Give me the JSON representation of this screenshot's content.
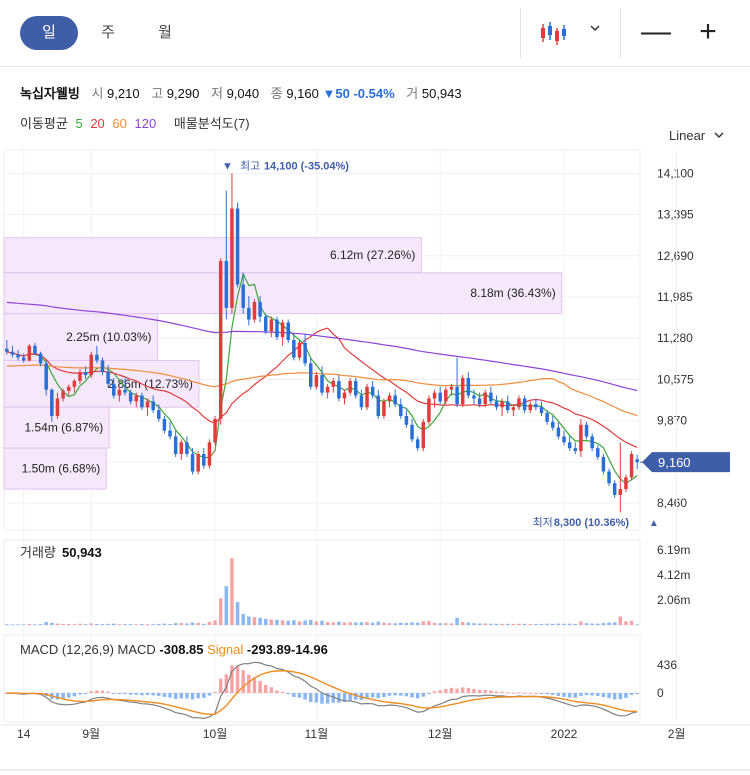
{
  "periods": [
    "일",
    "주",
    "월"
  ],
  "active_period": 0,
  "icons": {
    "chart_type": "candlestick-icon",
    "dropdown": "chevron-down-icon",
    "zoom_out": "minus-icon",
    "zoom_in": "plus-icon"
  },
  "zoom": {
    "out": "—",
    "in": "+"
  },
  "quote": {
    "name": "녹십자웰빙",
    "open_label": "시",
    "open": "9,210",
    "high_label": "고",
    "high": "9,290",
    "low_label": "저",
    "low": "9,040",
    "close_label": "종",
    "close": "9,160",
    "change": "▼50 -0.54%",
    "volume_label": "거",
    "volume": "50,943"
  },
  "ma_legend": {
    "label": "이동평균",
    "periods": [
      {
        "value": "5",
        "color": "#3aa73a"
      },
      {
        "value": "20",
        "color": "#e03c3c"
      },
      {
        "value": "60",
        "color": "#f08c3c"
      },
      {
        "value": "120",
        "color": "#8e44d6"
      }
    ],
    "vp_label": "매물분석도(7)"
  },
  "scale_type": "Linear",
  "colors": {
    "up": "#e03c3c",
    "down": "#2a6fd6",
    "volume_up": "#f4a4a4",
    "volume_down": "#8ab7ef",
    "vp_fill": "#f6e8fb",
    "vp_border": "#e3c4ef",
    "macd": "#808080",
    "signal": "#f08c1e",
    "price_tag": "#3f5ea8"
  },
  "chart_data": {
    "type": "candlestick",
    "price_axis": {
      "ticks": [
        "14,100",
        "13,395",
        "12,690",
        "11,985",
        "11,280",
        "10,575",
        "9,870",
        "9,160",
        "8,460"
      ],
      "ylim": [
        8000,
        14500
      ]
    },
    "x_axis": {
      "labels": [
        {
          "label": "14",
          "index": 3
        },
        {
          "label": "9월",
          "index": 15
        },
        {
          "label": "10월",
          "index": 37
        },
        {
          "label": "11월",
          "index": 55
        },
        {
          "label": "12월",
          "index": 77
        },
        {
          "label": "2022",
          "index": 99
        },
        {
          "label": "2월",
          "index": 119
        }
      ]
    },
    "candles": [
      [
        11100,
        11250,
        11000,
        11050
      ],
      [
        11050,
        11150,
        10950,
        11000
      ],
      [
        11000,
        11080,
        10900,
        10950
      ],
      [
        10950,
        11020,
        10860,
        10900
      ],
      [
        10900,
        11180,
        10880,
        11150
      ],
      [
        11150,
        11200,
        10990,
        11020
      ],
      [
        11020,
        11050,
        10800,
        10850
      ],
      [
        10850,
        10900,
        10300,
        10400
      ],
      [
        10400,
        10420,
        9850,
        9950
      ],
      [
        9950,
        10350,
        9900,
        10250
      ],
      [
        10250,
        10420,
        10200,
        10380
      ],
      [
        10380,
        10490,
        10300,
        10450
      ],
      [
        10450,
        10580,
        10350,
        10550
      ],
      [
        10550,
        10750,
        10500,
        10700
      ],
      [
        10700,
        10800,
        10580,
        10650
      ],
      [
        10650,
        11050,
        10600,
        11000
      ],
      [
        11000,
        11150,
        10850,
        10900
      ],
      [
        10900,
        10950,
        10650,
        10700
      ],
      [
        10700,
        10820,
        10450,
        10500
      ],
      [
        10500,
        10600,
        10250,
        10300
      ],
      [
        10300,
        10450,
        10200,
        10400
      ],
      [
        10400,
        10600,
        10300,
        10350
      ],
      [
        10350,
        10400,
        10150,
        10200
      ],
      [
        10200,
        10350,
        10100,
        10300
      ],
      [
        10300,
        10350,
        10050,
        10100
      ],
      [
        10100,
        10250,
        9950,
        10200
      ],
      [
        10200,
        10300,
        10000,
        10050
      ],
      [
        10050,
        10150,
        9850,
        9900
      ],
      [
        9900,
        9950,
        9650,
        9700
      ],
      [
        9700,
        9850,
        9550,
        9600
      ],
      [
        9600,
        9700,
        9250,
        9300
      ],
      [
        9300,
        9550,
        9200,
        9500
      ],
      [
        9500,
        9600,
        9250,
        9300
      ],
      [
        9300,
        9400,
        8950,
        9000
      ],
      [
        9000,
        9350,
        8950,
        9300
      ],
      [
        9300,
        9400,
        9050,
        9100
      ],
      [
        9100,
        9550,
        9050,
        9500
      ],
      [
        9500,
        9950,
        9450,
        9900
      ],
      [
        9900,
        12650,
        9800,
        12600
      ],
      [
        12600,
        13800,
        11600,
        11800
      ],
      [
        11800,
        14100,
        11700,
        13500
      ],
      [
        13500,
        13600,
        12150,
        12200
      ],
      [
        12200,
        12400,
        11700,
        11800
      ],
      [
        11800,
        12000,
        11500,
        11600
      ],
      [
        11600,
        11950,
        11550,
        11900
      ],
      [
        11900,
        12000,
        11550,
        11650
      ],
      [
        11650,
        11700,
        11350,
        11400
      ],
      [
        11400,
        11650,
        11300,
        11600
      ],
      [
        11600,
        11650,
        11250,
        11300
      ],
      [
        11300,
        11600,
        11150,
        11550
      ],
      [
        11550,
        11600,
        11200,
        11250
      ],
      [
        11250,
        11350,
        10900,
        10950
      ],
      [
        10950,
        11250,
        10900,
        11200
      ],
      [
        11200,
        11350,
        10800,
        10850
      ],
      [
        10850,
        10950,
        10400,
        10450
      ],
      [
        10450,
        10700,
        10400,
        10650
      ],
      [
        10650,
        10800,
        10300,
        10350
      ],
      [
        10350,
        10500,
        10250,
        10450
      ],
      [
        10450,
        10600,
        10350,
        10550
      ],
      [
        10550,
        10650,
        10200,
        10250
      ],
      [
        10250,
        10400,
        10150,
        10350
      ],
      [
        10350,
        10600,
        10300,
        10550
      ],
      [
        10550,
        10600,
        10250,
        10300
      ],
      [
        10300,
        10400,
        10050,
        10100
      ],
      [
        10100,
        10500,
        10050,
        10450
      ],
      [
        10450,
        10550,
        10250,
        10300
      ],
      [
        10300,
        10400,
        9900,
        9950
      ],
      [
        9950,
        10250,
        9900,
        10200
      ],
      [
        10200,
        10350,
        10100,
        10300
      ],
      [
        10300,
        10400,
        10100,
        10150
      ],
      [
        10150,
        10250,
        9900,
        9950
      ],
      [
        9950,
        10050,
        9750,
        9800
      ],
      [
        9800,
        9900,
        9500,
        9550
      ],
      [
        9550,
        9600,
        9350,
        9400
      ],
      [
        9400,
        9900,
        9350,
        9850
      ],
      [
        9850,
        10300,
        9800,
        10250
      ],
      [
        10250,
        10400,
        10100,
        10350
      ],
      [
        10350,
        10450,
        10150,
        10200
      ],
      [
        10200,
        10450,
        10150,
        10400
      ],
      [
        10400,
        10500,
        10300,
        10450
      ],
      [
        10450,
        10950,
        10100,
        10150
      ],
      [
        10150,
        10650,
        10100,
        10600
      ],
      [
        10600,
        10700,
        10250,
        10300
      ],
      [
        10300,
        10400,
        10150,
        10250
      ],
      [
        10250,
        10350,
        10100,
        10150
      ],
      [
        10150,
        10400,
        10100,
        10350
      ],
      [
        10350,
        10450,
        10150,
        10200
      ],
      [
        10200,
        10300,
        10050,
        10100
      ],
      [
        10100,
        10250,
        9950,
        10200
      ],
      [
        10200,
        10300,
        10000,
        10050
      ],
      [
        10050,
        10150,
        9950,
        10100
      ],
      [
        10100,
        10300,
        10050,
        10250
      ],
      [
        10250,
        10300,
        10000,
        10050
      ],
      [
        10050,
        10200,
        10000,
        10150
      ],
      [
        10150,
        10250,
        10050,
        10100
      ],
      [
        10100,
        10200,
        9950,
        10000
      ],
      [
        10000,
        10050,
        9800,
        9850
      ],
      [
        9850,
        9950,
        9700,
        9750
      ],
      [
        9750,
        9850,
        9550,
        9600
      ],
      [
        9600,
        9700,
        9450,
        9500
      ],
      [
        9500,
        9600,
        9350,
        9400
      ],
      [
        9400,
        9500,
        9300,
        9350
      ],
      [
        9350,
        9900,
        9250,
        9800
      ],
      [
        9800,
        9850,
        9550,
        9600
      ],
      [
        9600,
        9650,
        9350,
        9400
      ],
      [
        9400,
        9450,
        9200,
        9250
      ],
      [
        9250,
        9300,
        8950,
        9000
      ],
      [
        9000,
        9050,
        8750,
        8800
      ],
      [
        8800,
        8850,
        8550,
        8600
      ],
      [
        8600,
        9500,
        8300,
        8700
      ],
      [
        8700,
        8950,
        8650,
        8900
      ],
      [
        8900,
        9350,
        8850,
        9300
      ],
      [
        9210,
        9290,
        9040,
        9160
      ]
    ],
    "price_max": {
      "text": "최고",
      "value": "14,100 (-35.04%)",
      "index": 40
    },
    "price_min": {
      "text": "최저",
      "value": "8,300 (10.36%)",
      "index": 113
    },
    "current_price": "9,160",
    "volume_profile": [
      {
        "label": "6.12m (27.26%)",
        "low": 12400,
        "high": 13000,
        "share": 0.6562
      },
      {
        "label": "8.18m (36.43%)",
        "low": 11700,
        "high": 12400,
        "share": 0.8769
      },
      {
        "label": "2.25m (10.03%)",
        "low": 10900,
        "high": 11700,
        "share": 0.2414
      },
      {
        "label": "2.86m (12.73%)",
        "low": 10100,
        "high": 10900,
        "share": 0.3064
      },
      {
        "label": "1.54m (6.87%)",
        "low": 9400,
        "high": 10100,
        "share": 0.1654
      },
      {
        "label": "1.50m (6.68%)",
        "low": 8700,
        "high": 9400,
        "share": 0.1608
      }
    ],
    "volume": {
      "label": "거래량",
      "value": "50,943",
      "ticks": [
        "6.19m",
        "4.12m",
        "2.06m"
      ],
      "ylim": [
        0,
        7000000
      ],
      "values": [
        60000,
        55000,
        50000,
        48000,
        90000,
        52000,
        70000,
        250000,
        180000,
        120000,
        90000,
        80000,
        75000,
        110000,
        65000,
        130000,
        80000,
        72000,
        95000,
        110000,
        70000,
        68000,
        75000,
        60000,
        82000,
        70000,
        66000,
        90000,
        110000,
        80000,
        150000,
        160000,
        120000,
        200000,
        180000,
        100000,
        250000,
        380000,
        2200000,
        3200000,
        5500000,
        1900000,
        900000,
        700000,
        650000,
        600000,
        500000,
        450000,
        420000,
        380000,
        350000,
        400000,
        300000,
        380000,
        420000,
        300000,
        350000,
        250000,
        220000,
        260000,
        200000,
        220000,
        210000,
        230000,
        260000,
        180000,
        280000,
        190000,
        150000,
        140000,
        180000,
        160000,
        220000,
        190000,
        300000,
        320000,
        170000,
        140000,
        150000,
        130000,
        600000,
        250000,
        200000,
        150000,
        120000,
        130000,
        110000,
        100000,
        95000,
        98000,
        90000,
        110000,
        95000,
        85000,
        80000,
        90000,
        110000,
        95000,
        120000,
        100000,
        110000,
        90000,
        300000,
        150000,
        120000,
        110000,
        160000,
        200000,
        220000,
        700000,
        300000,
        350000,
        50943
      ]
    },
    "macd": {
      "title": "MACD (12,26,9)",
      "macd_label": "MACD",
      "macd_value": "-308.85",
      "signal_label": "Signal",
      "signal_value": "-293.89",
      "hist_value": "-14.96",
      "ticks": [
        "436",
        "0"
      ]
    }
  }
}
